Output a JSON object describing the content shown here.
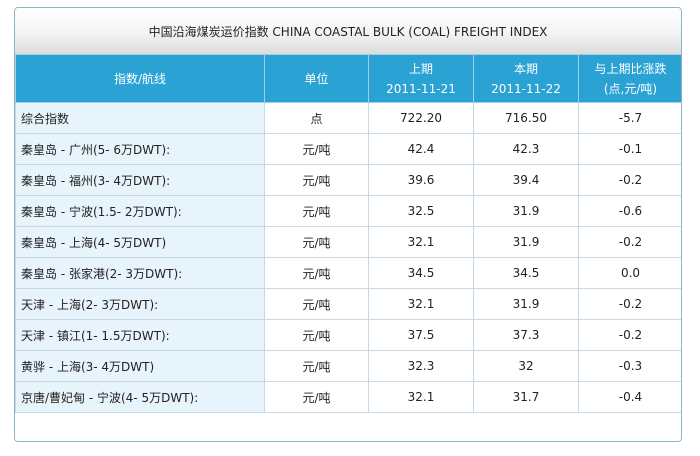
{
  "title": "中国沿海煤炭运价指数  CHINA COASTAL BULK (COAL) FREIGHT INDEX",
  "headers": {
    "route": "指数/航线",
    "unit": "单位",
    "prev": [
      "上期",
      "2011-11-21"
    ],
    "curr": [
      "本期",
      "2011-11-22"
    ],
    "change": [
      "与上期比涨跌",
      "(点,元/吨)"
    ]
  },
  "rows": [
    {
      "name": "综合指数",
      "unit": "点",
      "prev": "722.20",
      "curr": "716.50",
      "change": "-5.7"
    },
    {
      "name": "秦皇岛 - 广州(5- 6万DWT):",
      "unit": "元/吨",
      "prev": "42.4",
      "curr": "42.3",
      "change": "-0.1"
    },
    {
      "name": "秦皇岛 - 福州(3- 4万DWT):",
      "unit": "元/吨",
      "prev": "39.6",
      "curr": "39.4",
      "change": "-0.2"
    },
    {
      "name": "秦皇岛 - 宁波(1.5- 2万DWT):",
      "unit": "元/吨",
      "prev": "32.5",
      "curr": "31.9",
      "change": "-0.6"
    },
    {
      "name": "秦皇岛 - 上海(4- 5万DWT)",
      "unit": "元/吨",
      "prev": "32.1",
      "curr": "31.9",
      "change": "-0.2"
    },
    {
      "name": "秦皇岛 - 张家港(2- 3万DWT):",
      "unit": "元/吨",
      "prev": "34.5",
      "curr": "34.5",
      "change": "0.0"
    },
    {
      "name": "天津 - 上海(2- 3万DWT):",
      "unit": "元/吨",
      "prev": "32.1",
      "curr": "31.9",
      "change": "-0.2"
    },
    {
      "name": "天津 - 镇江(1- 1.5万DWT):",
      "unit": "元/吨",
      "prev": "37.5",
      "curr": "37.3",
      "change": "-0.2"
    },
    {
      "name": "黄骅 - 上海(3- 4万DWT)",
      "unit": "元/吨",
      "prev": "32.3",
      "curr": "32",
      "change": "-0.3"
    },
    {
      "name": "京唐/曹妃甸 - 宁波(4- 5万DWT):",
      "unit": "元/吨",
      "prev": "32.1",
      "curr": "31.7",
      "change": "-0.4"
    }
  ]
}
